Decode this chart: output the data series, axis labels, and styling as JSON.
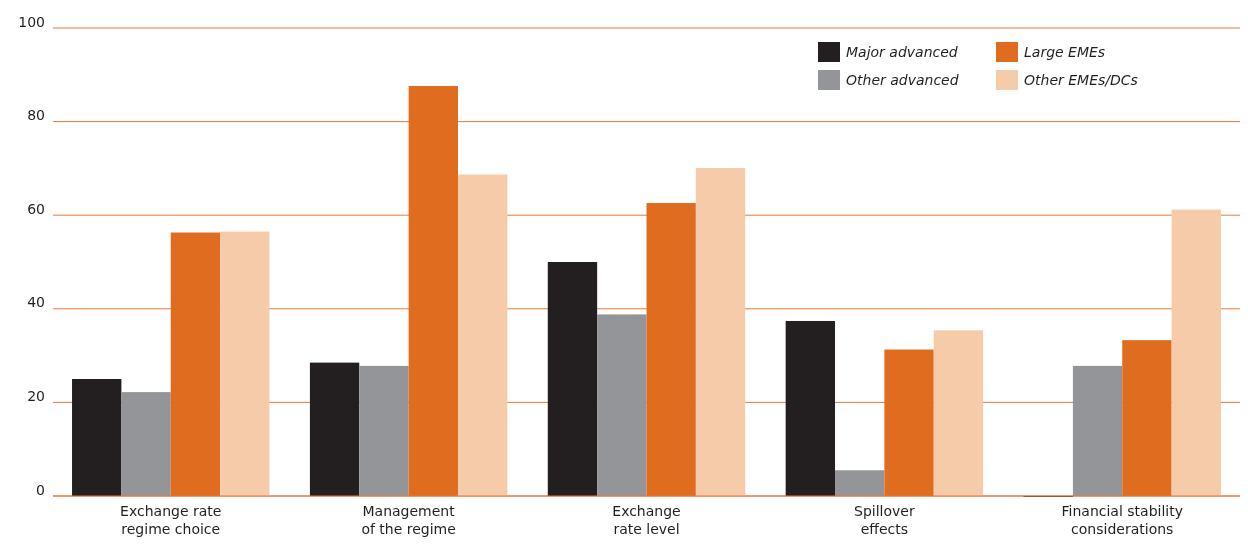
{
  "chart_data": {
    "type": "bar",
    "categories": [
      "Exchange rate\nregime choice",
      "Management\nof the regime",
      "Exchange\nrate level",
      "Spillover\neffects",
      "Financial stability\nconsiderations"
    ],
    "series": [
      {
        "name": "Major advanced",
        "color": "#231f20",
        "values": [
          25,
          28.5,
          50,
          37.4,
          0
        ]
      },
      {
        "name": "Other advanced",
        "color": "#939598",
        "values": [
          22.2,
          27.8,
          38.8,
          5.5,
          27.8
        ]
      },
      {
        "name": "Large EMEs",
        "color": "#e06c1f",
        "values": [
          56.3,
          87.6,
          62.6,
          31.3,
          33.3
        ]
      },
      {
        "name": "Other EMEs/DCs",
        "color": "#f6cbaa",
        "values": [
          56.5,
          68.7,
          70.1,
          35.4,
          61.2
        ]
      }
    ],
    "ylim": [
      0,
      100
    ],
    "yticks": [
      0,
      20,
      40,
      60,
      80,
      100
    ],
    "grid": "y",
    "legend": "top right"
  }
}
